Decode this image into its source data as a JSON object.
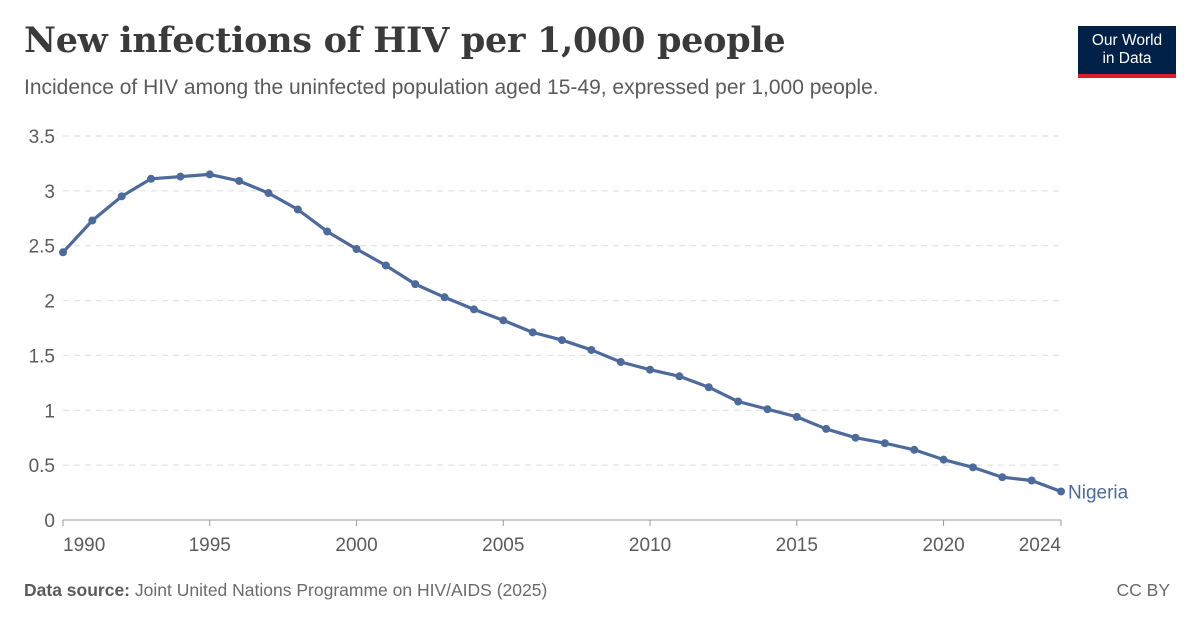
{
  "header": {
    "title": "New infections of HIV per 1,000 people",
    "subtitle": "Incidence of HIV among the uninfected population aged 15-49, expressed per 1,000 people."
  },
  "logo": {
    "line1": "Our World",
    "line2": "in Data"
  },
  "footer": {
    "source_label": "Data source:",
    "source_text": " Joint United Nations Programme on HIV/AIDS (2025)",
    "license": "CC BY"
  },
  "colors": {
    "series": "#4c6a9c",
    "grid": "#dddddd",
    "axis": "#999999"
  },
  "chart_data": {
    "type": "line",
    "title": "New infections of HIV per 1,000 people",
    "xlim": [
      1990,
      2024
    ],
    "ylim": [
      0,
      3.5
    ],
    "x_ticks": [
      "1990",
      "1995",
      "2000",
      "2005",
      "2010",
      "2015",
      "2020",
      "2024"
    ],
    "y_ticks": [
      "0",
      "0.5",
      "1",
      "1.5",
      "2",
      "2.5",
      "3",
      "3.5"
    ],
    "grid": true,
    "series": [
      {
        "name": "Nigeria",
        "x": [
          1990,
          1991,
          1992,
          1993,
          1994,
          1995,
          1996,
          1997,
          1998,
          1999,
          2000,
          2001,
          2002,
          2003,
          2004,
          2005,
          2006,
          2007,
          2008,
          2009,
          2010,
          2011,
          2012,
          2013,
          2014,
          2015,
          2016,
          2017,
          2018,
          2019,
          2020,
          2021,
          2022,
          2023,
          2024
        ],
        "y": [
          2.44,
          2.73,
          2.95,
          3.11,
          3.13,
          3.15,
          3.09,
          2.98,
          2.83,
          2.63,
          2.47,
          2.32,
          2.15,
          2.03,
          1.92,
          1.82,
          1.71,
          1.64,
          1.55,
          1.44,
          1.37,
          1.31,
          1.21,
          1.08,
          1.01,
          0.94,
          0.83,
          0.75,
          0.7,
          0.64,
          0.55,
          0.48,
          0.39,
          0.36,
          0.26
        ]
      }
    ]
  }
}
